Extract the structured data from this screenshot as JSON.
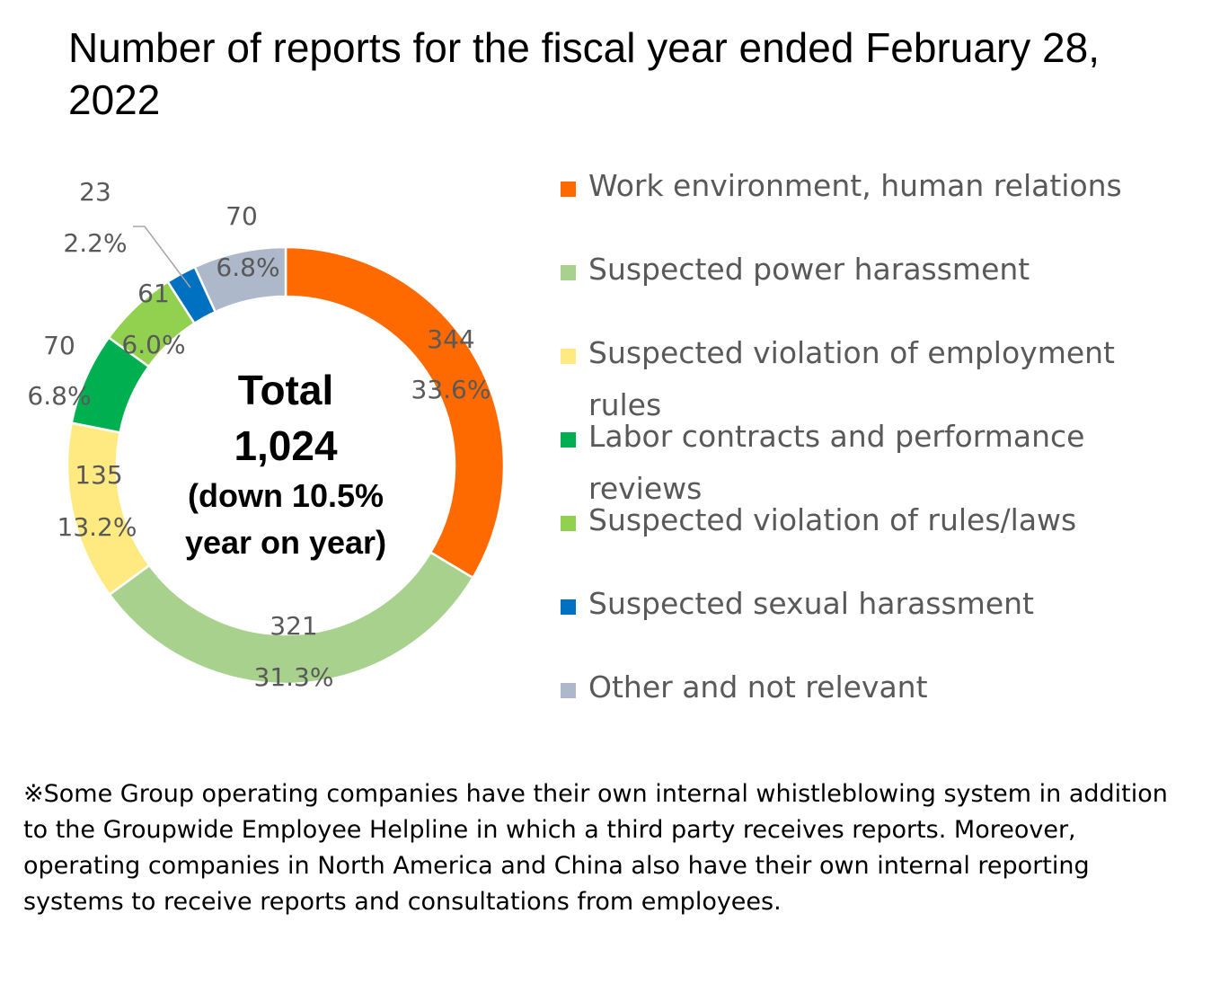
{
  "title": "Number of reports for the fiscal year ended February 28, 2022",
  "center": {
    "line1": "Total",
    "line2": "1,024",
    "line3": "(down 10.5%",
    "line4": "year on year)"
  },
  "note": "※Some Group operating companies have their own internal whistleblowing system in addition to the Groupwide Employee Helpline in which a third party receives reports. Moreover, operating companies in North America and China also have their own internal reporting systems to receive reports and consultations from employees.",
  "chart_data": {
    "type": "pie",
    "variant": "donut",
    "legend_placement": "right",
    "total": 1024,
    "series": [
      {
        "name": "Work environment, human relations",
        "value": 344,
        "percent_label": "33.6%",
        "color": "#FF6A00"
      },
      {
        "name": "Suspected power harassment",
        "value": 321,
        "percent_label": "31.3%",
        "color": "#A9D18E"
      },
      {
        "name": "Suspected violation of employment rules",
        "value": 135,
        "percent_label": "13.2%",
        "color": "#FFE981"
      },
      {
        "name": "Labor contracts and performance reviews",
        "value": 70,
        "percent_label": "6.8%",
        "color": "#00B050"
      },
      {
        "name": "Suspected violation of rules/laws",
        "value": 61,
        "percent_label": "6.0%",
        "color": "#92D050"
      },
      {
        "name": "Suspected sexual harassment",
        "value": 23,
        "percent_label": "2.2%",
        "color": "#0070C0"
      },
      {
        "name": "Other and not relevant",
        "value": 70,
        "percent_label": "6.8%",
        "color": "#ADB9CA"
      }
    ]
  }
}
